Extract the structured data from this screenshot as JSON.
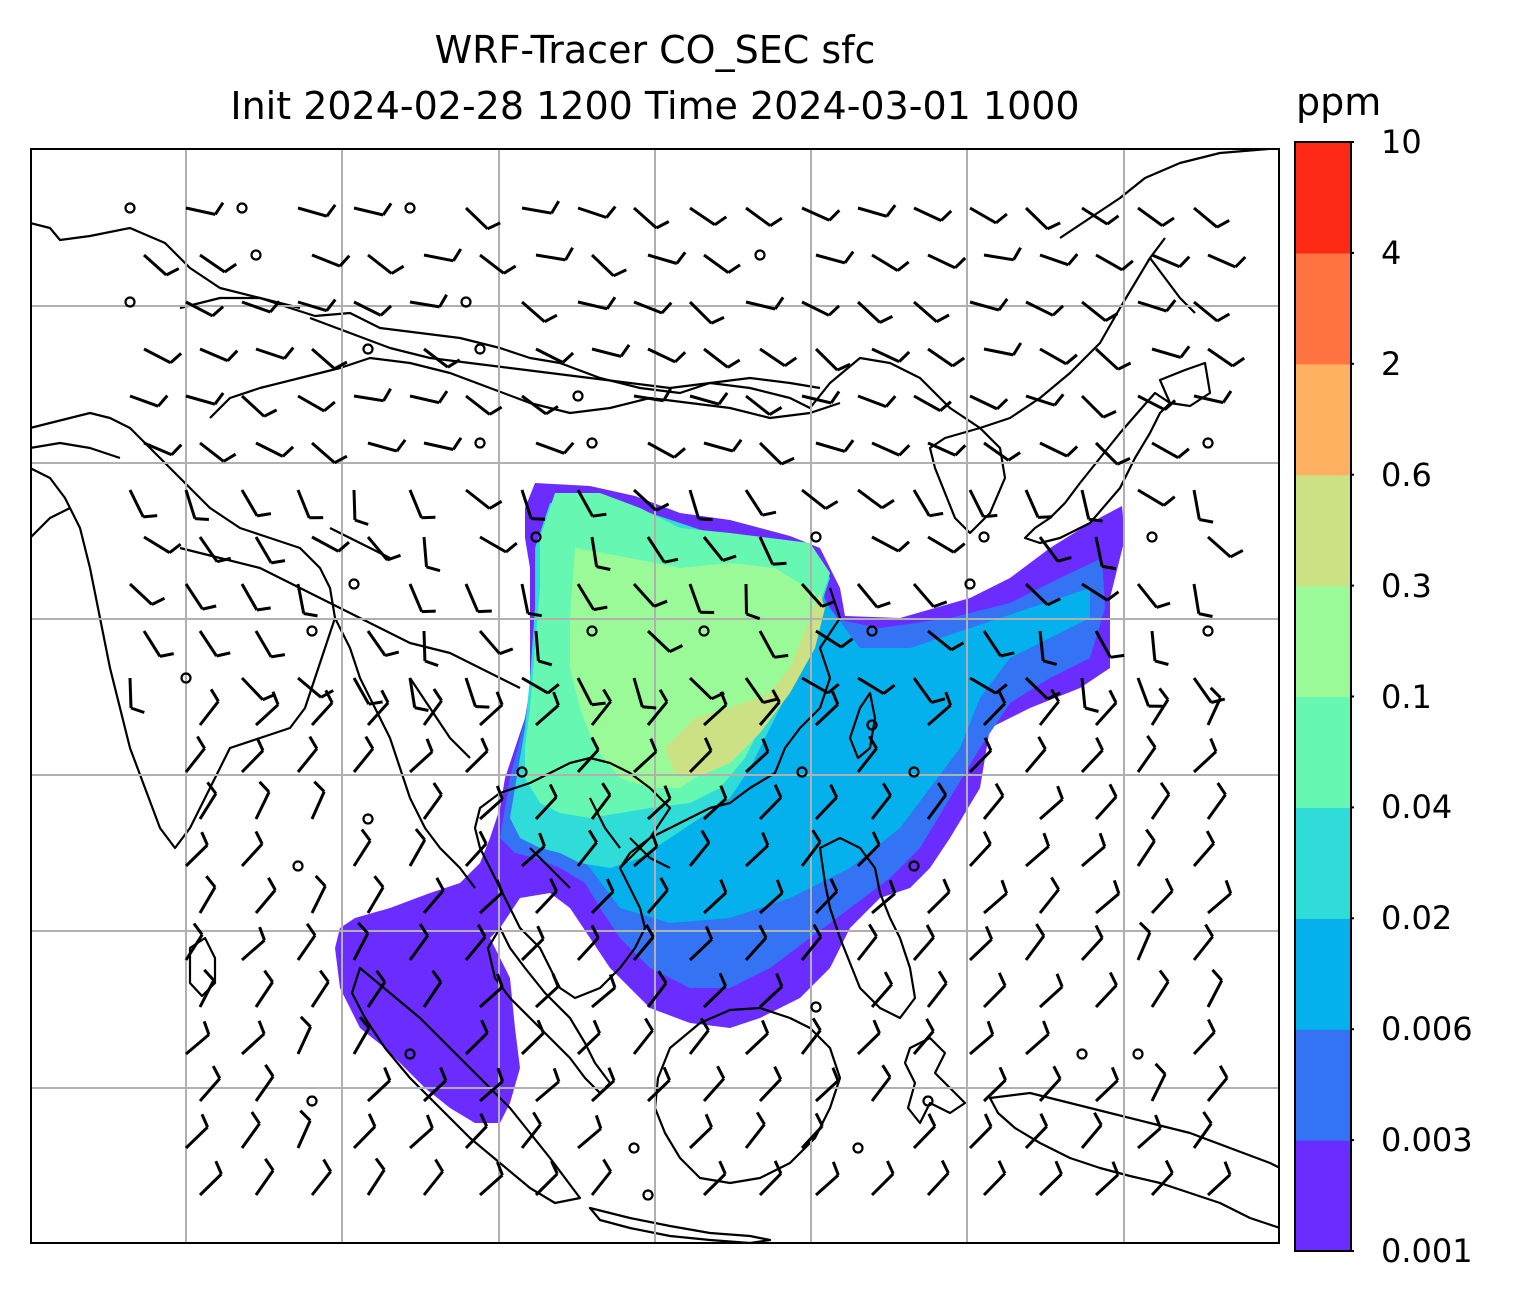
{
  "title": {
    "line1": "WRF-Tracer CO_SEC sfc",
    "line2": "Init 2024-02-28 1200 Time 2024-03-01 1000"
  },
  "colorbar": {
    "unit": "ppm",
    "tick_labels": [
      "0.001",
      "0.003",
      "0.006",
      "0.02",
      "0.04",
      "0.1",
      "0.3",
      "0.6",
      "2",
      "4",
      "10"
    ],
    "level_colors": [
      "#6a2cff",
      "#3373f4",
      "#04b1ec",
      "#30dcd7",
      "#66f8b3",
      "#9bfa98",
      "#cbe184",
      "#ffb060",
      "#ff7440",
      "#ff2a16"
    ]
  },
  "map": {
    "variable": "CO_SEC surface tracer concentration",
    "overlay": "wind barbs",
    "gridlines": true,
    "coastlines": true,
    "country_borders": true
  }
}
